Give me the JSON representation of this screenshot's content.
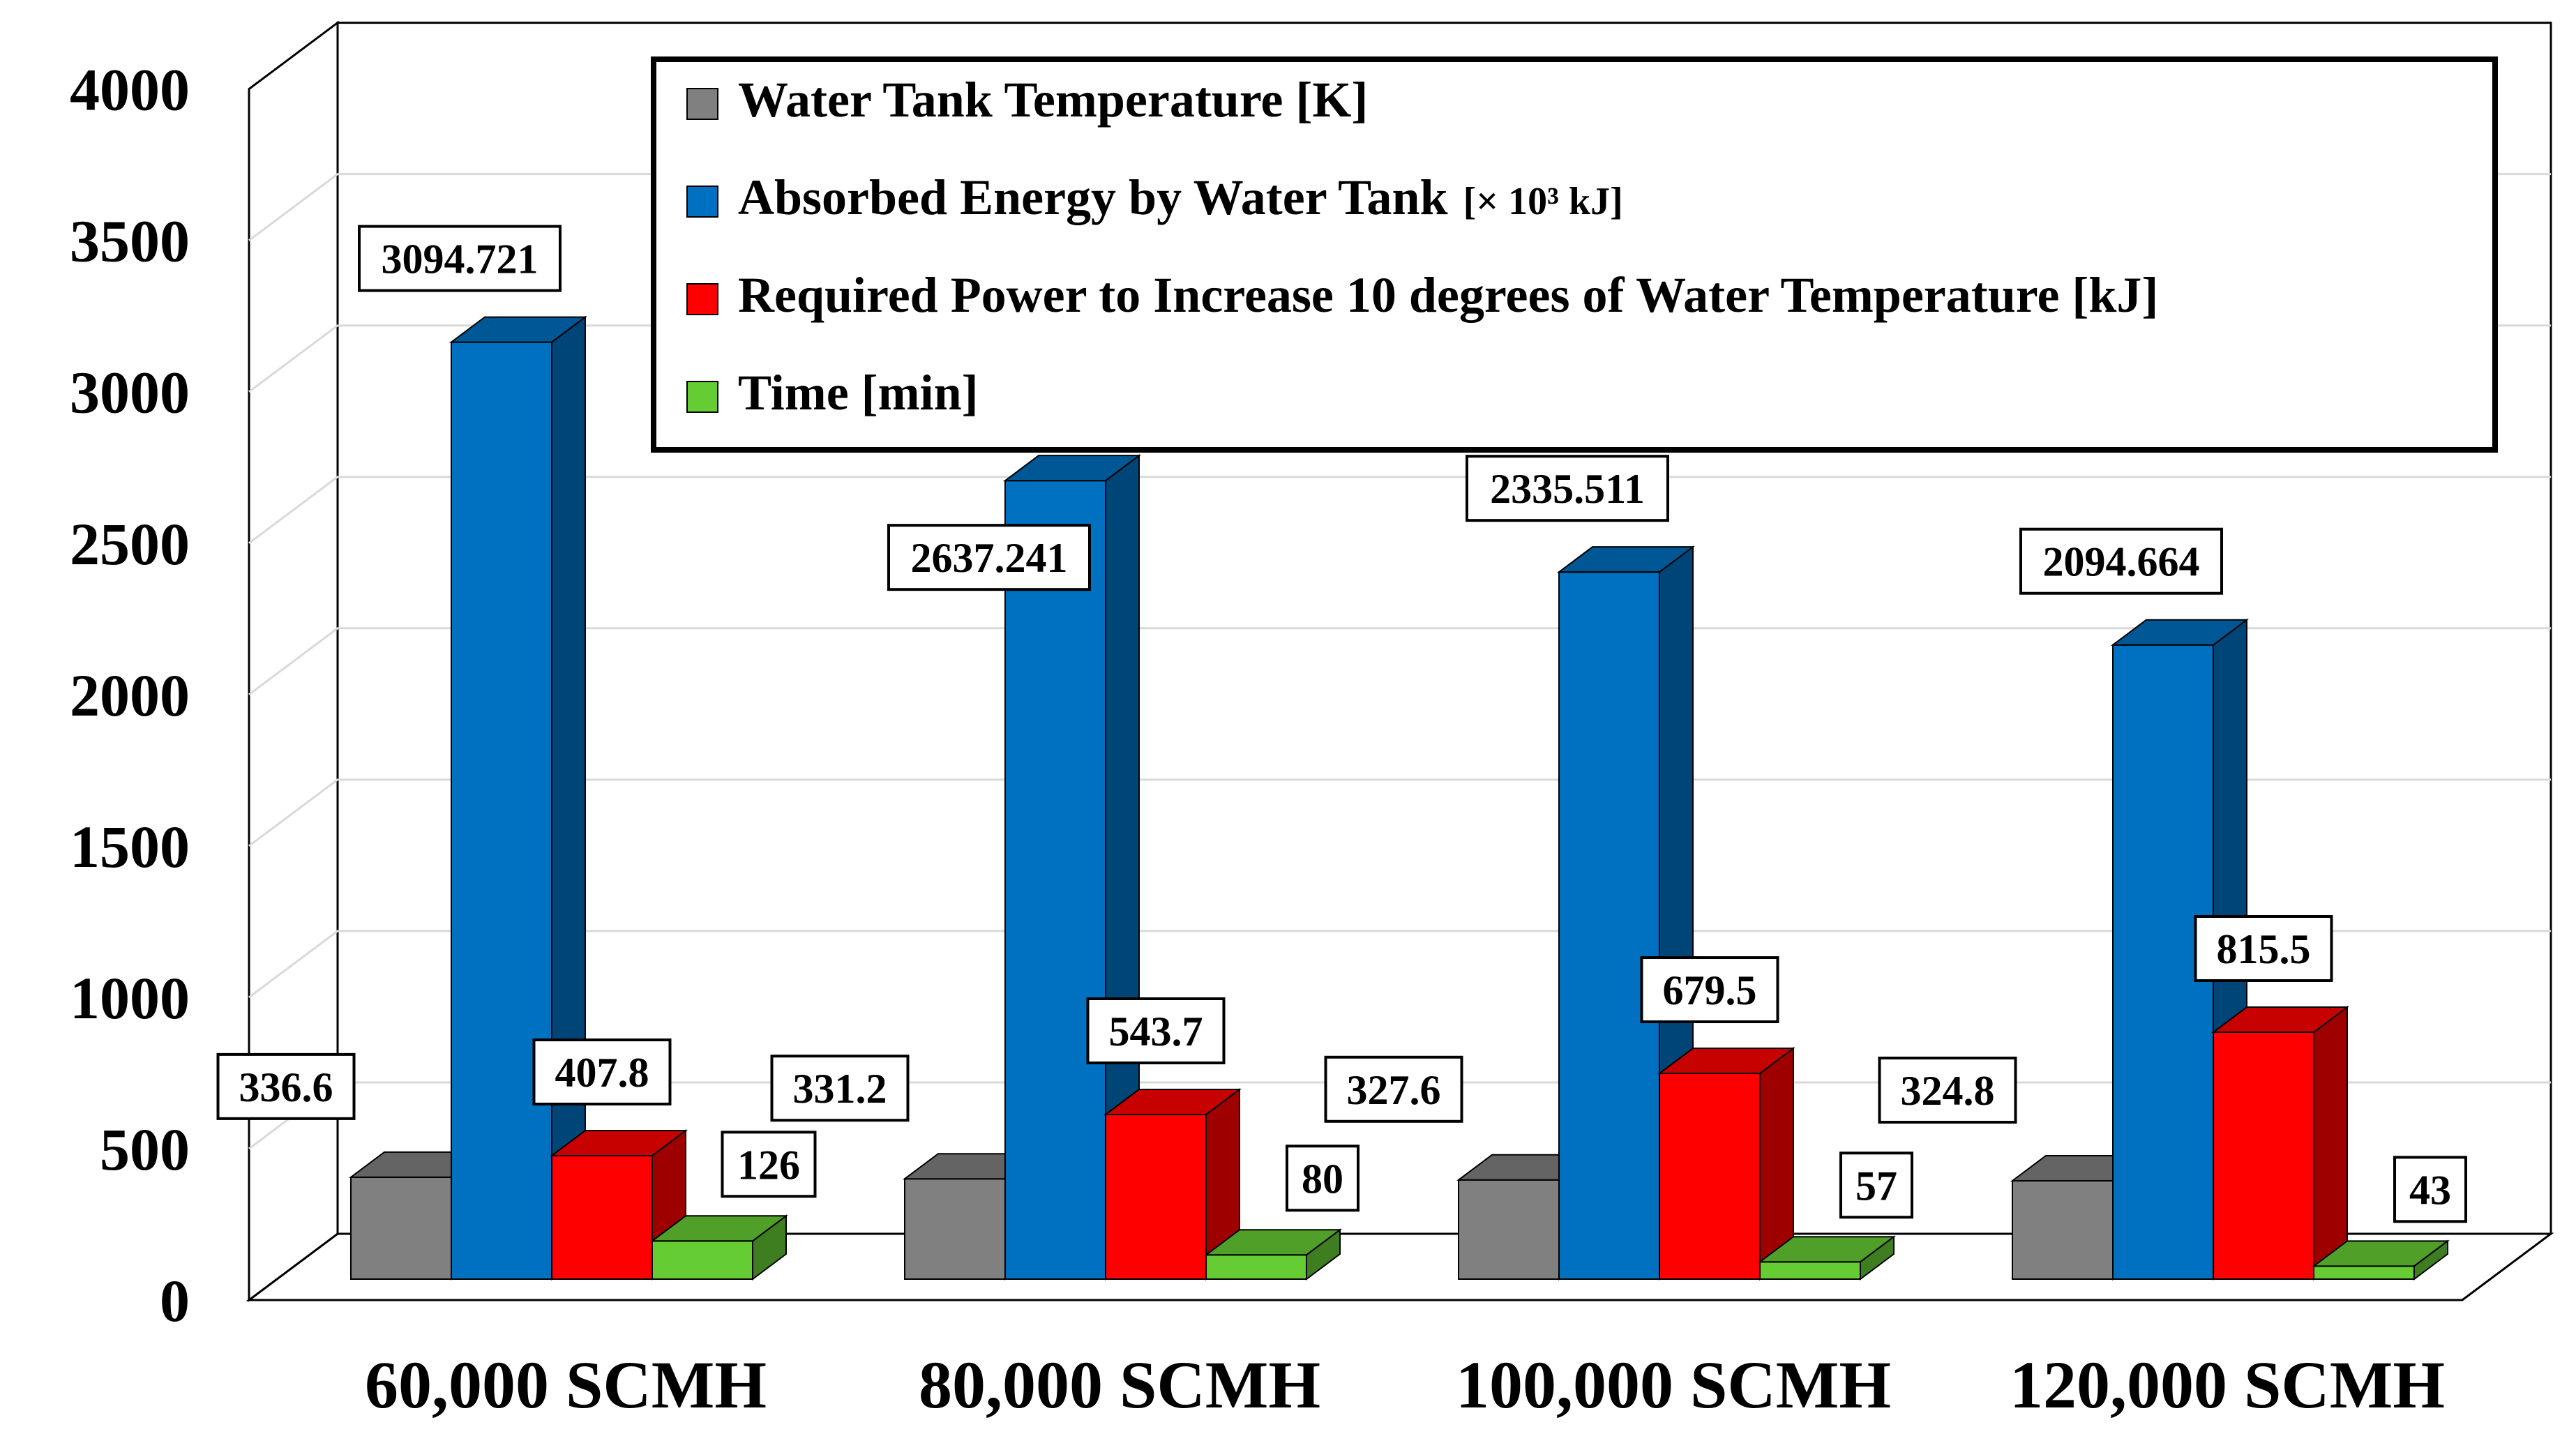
{
  "chart_data": {
    "type": "bar",
    "style": "3d-clustered-column",
    "title": "",
    "xlabel": "",
    "ylabel": "",
    "ylim": [
      0,
      4000
    ],
    "yticks": [
      0,
      500,
      1000,
      1500,
      2000,
      2500,
      3000,
      3500,
      4000
    ],
    "grid": true,
    "legend_position": "top-right",
    "categories": [
      "60,000 SCMH",
      "80,000 SCMH",
      "100,000 SCMH",
      "120,000 SCMH"
    ],
    "series": [
      {
        "name": "Water Tank Temperature [K]",
        "color": "#808080",
        "values": [
          336.6,
          331.2,
          327.6,
          324.8
        ],
        "labels": [
          "336.6",
          "331.2",
          "327.6",
          "324.8"
        ]
      },
      {
        "name": "Absorbed Energy by Water Tank",
        "unit": "[× 10³ kJ]",
        "color": "#0070C0",
        "values": [
          3094.721,
          2637.241,
          2335.511,
          2094.664
        ],
        "labels": [
          "3094.721",
          "2637.241",
          "2335.511",
          "2094.664"
        ]
      },
      {
        "name": "Required Power to Increase 10 degrees of Water Temperature [kJ]",
        "color": "#FF0000",
        "values": [
          407.8,
          543.7,
          679.5,
          815.5
        ],
        "labels": [
          "407.8",
          "543.7",
          "679.5",
          "815.5"
        ]
      },
      {
        "name": "Time [min]",
        "color": "#66CC33",
        "values": [
          126,
          80,
          57,
          43
        ],
        "labels": [
          "126",
          "80",
          "57",
          "43"
        ]
      }
    ]
  }
}
